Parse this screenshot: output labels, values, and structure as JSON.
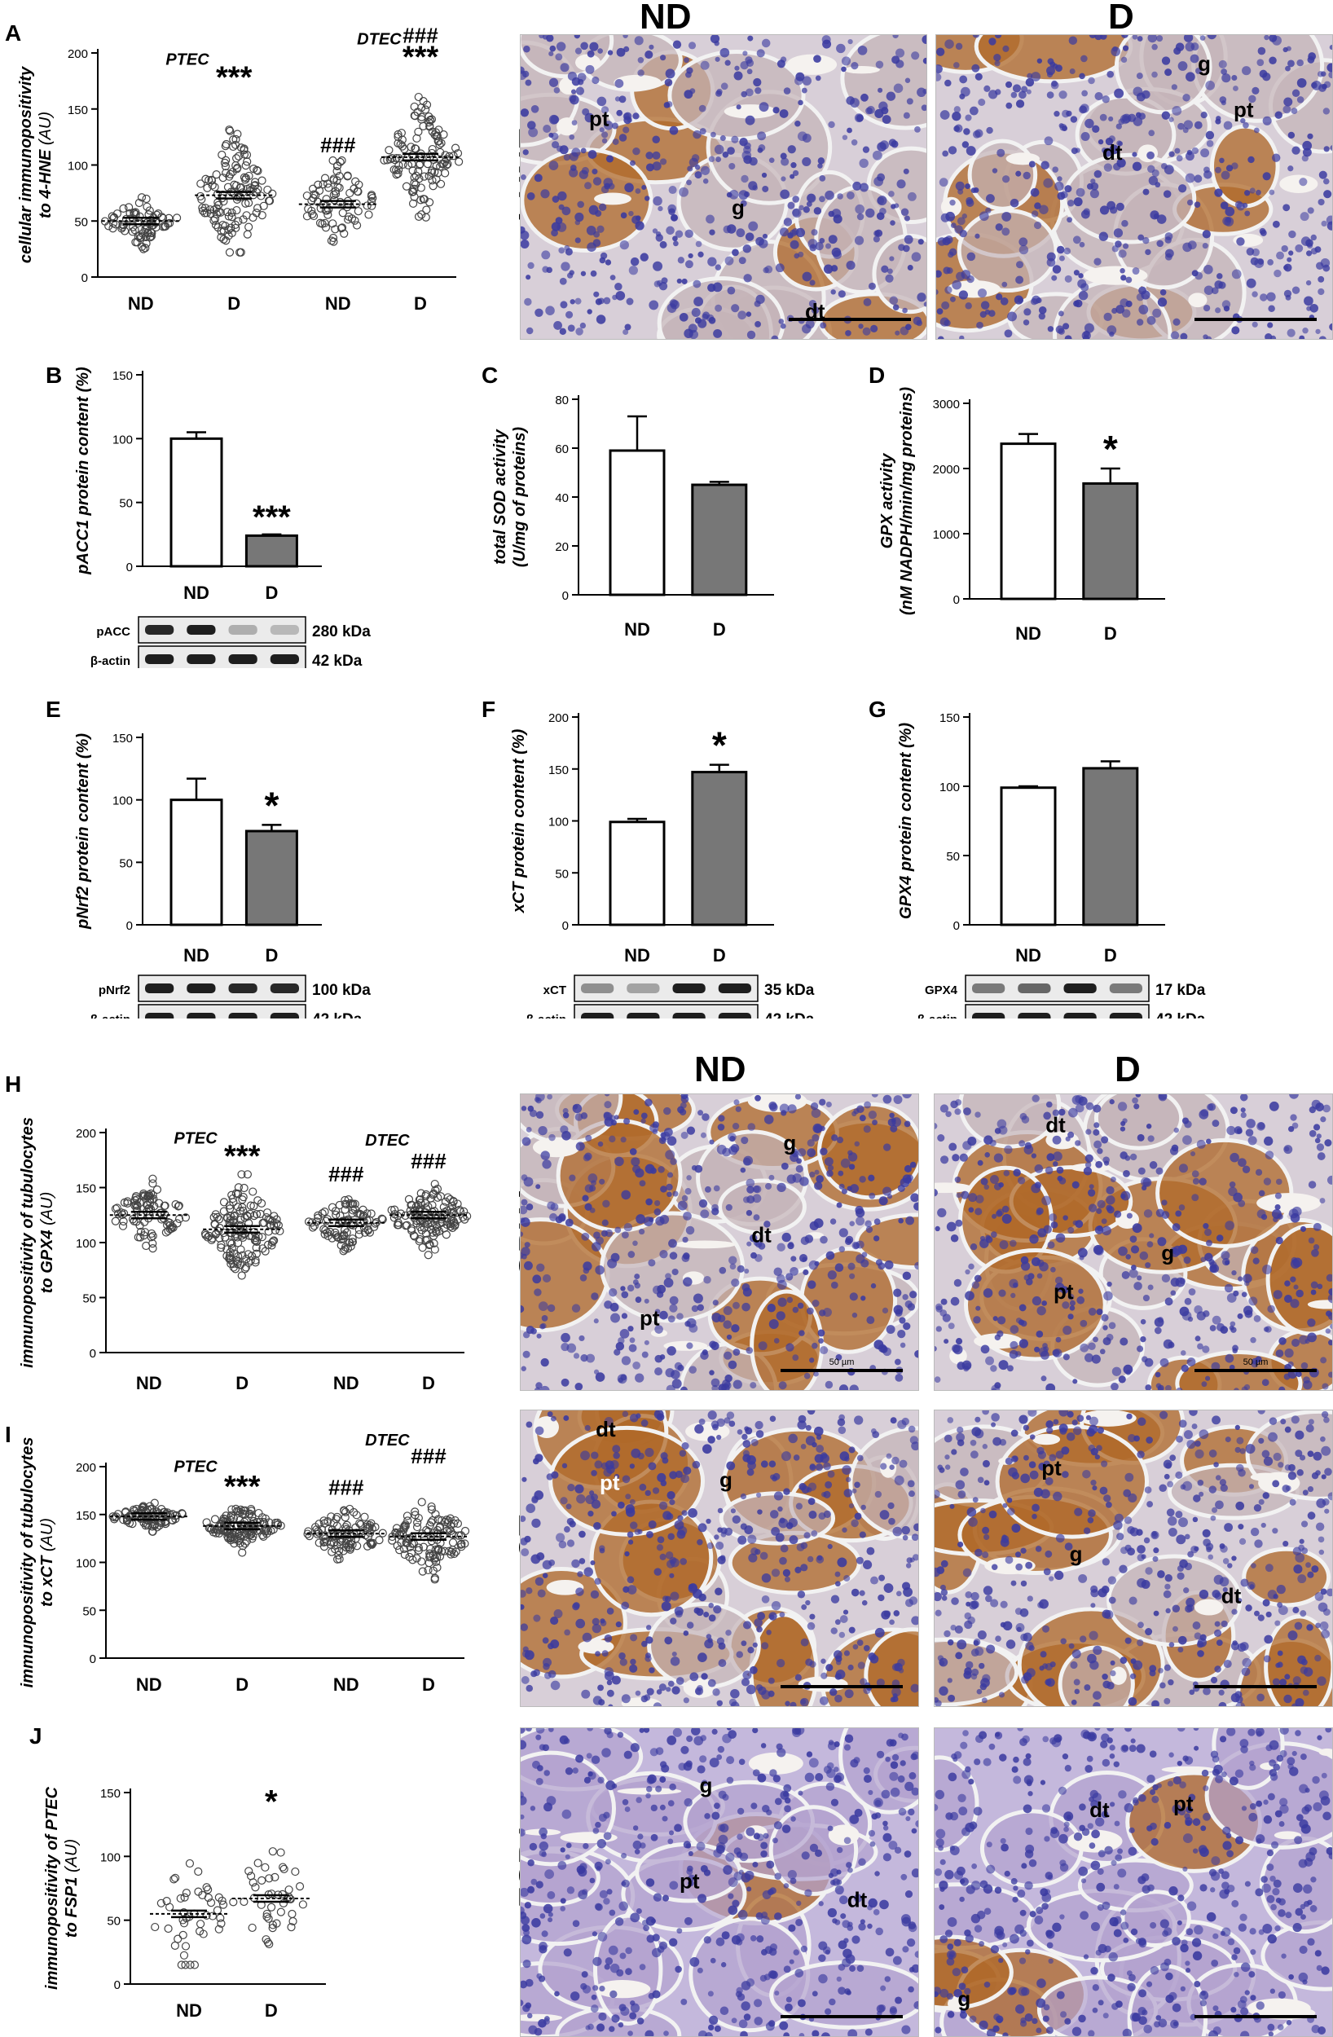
{
  "panels": [
    {
      "letter": "A",
      "type": "scatter",
      "ylabel1": "cellular immunopositivity",
      "ylabel2": "to 4-HNE",
      "ylabel_unit": "(AU)",
      "yticks": [
        0,
        50,
        100,
        150,
        200
      ],
      "ylim": [
        0,
        200
      ],
      "categories": [
        "ND",
        "D",
        "ND",
        "D"
      ],
      "groups": [
        {
          "label": "PTEC",
          "cats": [
            0,
            1
          ]
        },
        {
          "label": "DTEC",
          "cats": [
            2,
            3
          ]
        }
      ],
      "series": [
        {
          "category": "ND",
          "n": 80,
          "mean": 50,
          "sd": 9,
          "min": 25,
          "max": 88,
          "marks": []
        },
        {
          "category": "D",
          "n": 130,
          "mean": 73,
          "sd": 24,
          "min": 22,
          "max": 162,
          "marks": [
            "***"
          ]
        },
        {
          "category": "ND",
          "n": 80,
          "mean": 65,
          "sd": 16,
          "min": 15,
          "max": 104,
          "marks": [
            "###"
          ]
        },
        {
          "category": "D",
          "n": 120,
          "mean": 107,
          "sd": 22,
          "min": 45,
          "max": 180,
          "marks": [
            "###",
            "***"
          ]
        }
      ]
    },
    {
      "letter": "B",
      "type": "bar",
      "ylabel1": "pACC1 protein content (%)",
      "yticks": [
        0,
        50,
        100,
        150
      ],
      "ylim": [
        0,
        150
      ],
      "categories": [
        "ND",
        "D"
      ],
      "values": [
        100,
        24
      ],
      "errors": [
        5,
        1
      ],
      "fills": [
        "#ffffff",
        "#777777"
      ],
      "marks": [
        "",
        "***"
      ],
      "blot": {
        "lanes": 4,
        "rows": [
          {
            "label": "pACC",
            "kda": "280 kDa",
            "intensity": [
              0.95,
              1,
              0.3,
              0.25
            ]
          },
          {
            "label": "β-actin",
            "kda": "42 kDa",
            "intensity": [
              1,
              1,
              1,
              1
            ]
          }
        ]
      }
    },
    {
      "letter": "C",
      "type": "bar",
      "ylabel1": "total SOD activity",
      "ylabel2": "(U/mg of proteins)",
      "yticks": [
        0,
        20,
        40,
        60,
        80
      ],
      "ylim": [
        0,
        80
      ],
      "categories": [
        "ND",
        "D"
      ],
      "values": [
        59,
        45
      ],
      "errors": [
        14,
        1.2
      ],
      "fills": [
        "#ffffff",
        "#777777"
      ],
      "marks": [
        "",
        ""
      ]
    },
    {
      "letter": "D",
      "type": "bar",
      "ylabel1": "GPX activity",
      "ylabel2": "(nM NADPH/min/mg proteins)",
      "yticks": [
        0,
        1000,
        2000,
        3000
      ],
      "ylim": [
        0,
        3000
      ],
      "categories": [
        "ND",
        "D"
      ],
      "values": [
        2380,
        1770
      ],
      "errors": [
        150,
        230
      ],
      "fills": [
        "#ffffff",
        "#777777"
      ],
      "marks": [
        "",
        "*"
      ]
    },
    {
      "letter": "E",
      "type": "bar",
      "ylabel1": "pNrf2 protein content (%)",
      "yticks": [
        0,
        50,
        100,
        150
      ],
      "ylim": [
        0,
        150
      ],
      "categories": [
        "ND",
        "D"
      ],
      "values": [
        100,
        75
      ],
      "errors": [
        17,
        5
      ],
      "fills": [
        "#ffffff",
        "#777777"
      ],
      "marks": [
        "",
        "*"
      ],
      "blot": {
        "lanes": 4,
        "rows": [
          {
            "label": "pNrf2",
            "kda": "100 kDa",
            "intensity": [
              1,
              1,
              0.95,
              0.95
            ]
          },
          {
            "label": "β-actin",
            "kda": "42 kDa",
            "intensity": [
              1,
              1,
              1,
              1
            ]
          }
        ]
      }
    },
    {
      "letter": "F",
      "type": "bar",
      "ylabel1": "xCT protein content (%)",
      "yticks": [
        0,
        50,
        100,
        150,
        200
      ],
      "ylim": [
        0,
        200
      ],
      "categories": [
        "ND",
        "D"
      ],
      "values": [
        99,
        147
      ],
      "errors": [
        3,
        7
      ],
      "fills": [
        "#ffffff",
        "#777777"
      ],
      "marks": [
        "",
        "*"
      ],
      "blot": {
        "lanes": 4,
        "rows": [
          {
            "label": "xCT",
            "kda": "35 kDa",
            "intensity": [
              0.45,
              0.35,
              1,
              1
            ]
          },
          {
            "label": "β-actin",
            "kda": "42 kDa",
            "intensity": [
              1,
              1,
              1,
              1
            ]
          }
        ]
      }
    },
    {
      "letter": "G",
      "type": "bar",
      "ylabel1": "GPX4 protein content (%)",
      "yticks": [
        0,
        50,
        100,
        150
      ],
      "ylim": [
        0,
        150
      ],
      "categories": [
        "ND",
        "D"
      ],
      "values": [
        99,
        113
      ],
      "errors": [
        1,
        5
      ],
      "fills": [
        "#ffffff",
        "#777777"
      ],
      "marks": [
        "",
        ""
      ],
      "blot": {
        "lanes": 4,
        "rows": [
          {
            "label": "GPX4",
            "kda": "17 kDa",
            "intensity": [
              0.55,
              0.65,
              1,
              0.55
            ]
          },
          {
            "label": "β-actin",
            "kda": "42 kDa",
            "intensity": [
              1,
              1,
              1,
              1
            ]
          }
        ]
      }
    },
    {
      "letter": "H",
      "type": "scatter",
      "ylabel1": "immunopositivity of tubulocytes",
      "ylabel2": "to GPX4",
      "ylabel_unit": "(AU)",
      "yticks": [
        0,
        50,
        100,
        150,
        200
      ],
      "ylim": [
        0,
        200
      ],
      "categories": [
        "ND",
        "D",
        "ND",
        "D"
      ],
      "groups": [
        {
          "label": "PTEC",
          "cats": [
            0,
            1
          ]
        },
        {
          "label": "DTEC",
          "cats": [
            2,
            3
          ]
        }
      ],
      "series": [
        {
          "category": "ND",
          "n": 90,
          "mean": 125,
          "sd": 12,
          "min": 80,
          "max": 158,
          "marks": []
        },
        {
          "category": "D",
          "n": 150,
          "mean": 112,
          "sd": 20,
          "min": 70,
          "max": 162,
          "marks": [
            "***"
          ]
        },
        {
          "category": "ND",
          "n": 90,
          "mean": 118,
          "sd": 10,
          "min": 90,
          "max": 148,
          "marks": [
            "###"
          ]
        },
        {
          "category": "D",
          "n": 130,
          "mean": 125,
          "sd": 14,
          "min": 75,
          "max": 160,
          "marks": [
            "###"
          ]
        }
      ]
    },
    {
      "letter": "I",
      "type": "scatter",
      "ylabel1": "immunopositivity of tubulocytes",
      "ylabel2": "to xCT",
      "ylabel_unit": "(AU)",
      "yticks": [
        0,
        50,
        100,
        150,
        200
      ],
      "ylim": [
        0,
        200
      ],
      "categories": [
        "ND",
        "D",
        "ND",
        "D"
      ],
      "groups": [
        {
          "label": "PTEC",
          "cats": [
            0,
            1
          ]
        },
        {
          "label": "DTEC",
          "cats": [
            2,
            3
          ]
        }
      ],
      "series": [
        {
          "category": "ND",
          "n": 90,
          "mean": 148,
          "sd": 6,
          "min": 132,
          "max": 162,
          "marks": []
        },
        {
          "category": "D",
          "n": 130,
          "mean": 138,
          "sd": 10,
          "min": 95,
          "max": 160,
          "marks": [
            "***"
          ]
        },
        {
          "category": "ND",
          "n": 100,
          "mean": 130,
          "sd": 14,
          "min": 90,
          "max": 162,
          "marks": [
            "###"
          ]
        },
        {
          "category": "D",
          "n": 120,
          "mean": 127,
          "sd": 20,
          "min": 66,
          "max": 195,
          "marks": [
            "###"
          ]
        }
      ]
    },
    {
      "letter": "J",
      "type": "scatter",
      "ylabel1": "immunopositivity of PTEC",
      "ylabel2": "to FSP1",
      "ylabel_unit": "(AU)",
      "yticks": [
        0,
        50,
        100,
        150
      ],
      "ylim": [
        0,
        150
      ],
      "categories": [
        "ND",
        "D"
      ],
      "groups": [],
      "series": [
        {
          "category": "ND",
          "n": 45,
          "mean": 55,
          "sd": 20,
          "min": 15,
          "max": 95,
          "marks": []
        },
        {
          "category": "D",
          "n": 45,
          "mean": 67,
          "sd": 22,
          "min": 15,
          "max": 128,
          "marks": [
            "*"
          ]
        }
      ]
    }
  ],
  "micrographs": {
    "col_labels": [
      "ND",
      "D"
    ],
    "rows": [
      {
        "stain": "4-HNE",
        "images": [
          {
            "labels": [
              "pt",
              "g",
              "dt"
            ]
          },
          {
            "labels": [
              "g",
              "pt",
              "dt"
            ]
          }
        ]
      },
      {
        "stain": "GPX4",
        "images": [
          {
            "labels": [
              "g",
              "dt",
              "pt"
            ],
            "scale_text": "50 µm"
          },
          {
            "labels": [
              "dt",
              "g",
              "pt"
            ],
            "scale_text": "50 µm"
          }
        ]
      },
      {
        "stain": "xCT",
        "images": [
          {
            "labels": [
              "dt",
              "pt",
              "g"
            ]
          },
          {
            "labels": [
              "pt",
              "g",
              "dt"
            ]
          }
        ]
      },
      {
        "stain": "FSP1",
        "images": [
          {
            "labels": [
              "g",
              "pt",
              "dt"
            ]
          },
          {
            "labels": [
              "dt",
              "pt",
              "g"
            ]
          }
        ]
      }
    ]
  },
  "colors": {
    "he_nuclei": "#3a3aa0",
    "dab_brown": "#b06a2a",
    "background_tissue": "#d8cfd8",
    "fsp1_tissue": "#c4b8dc"
  }
}
